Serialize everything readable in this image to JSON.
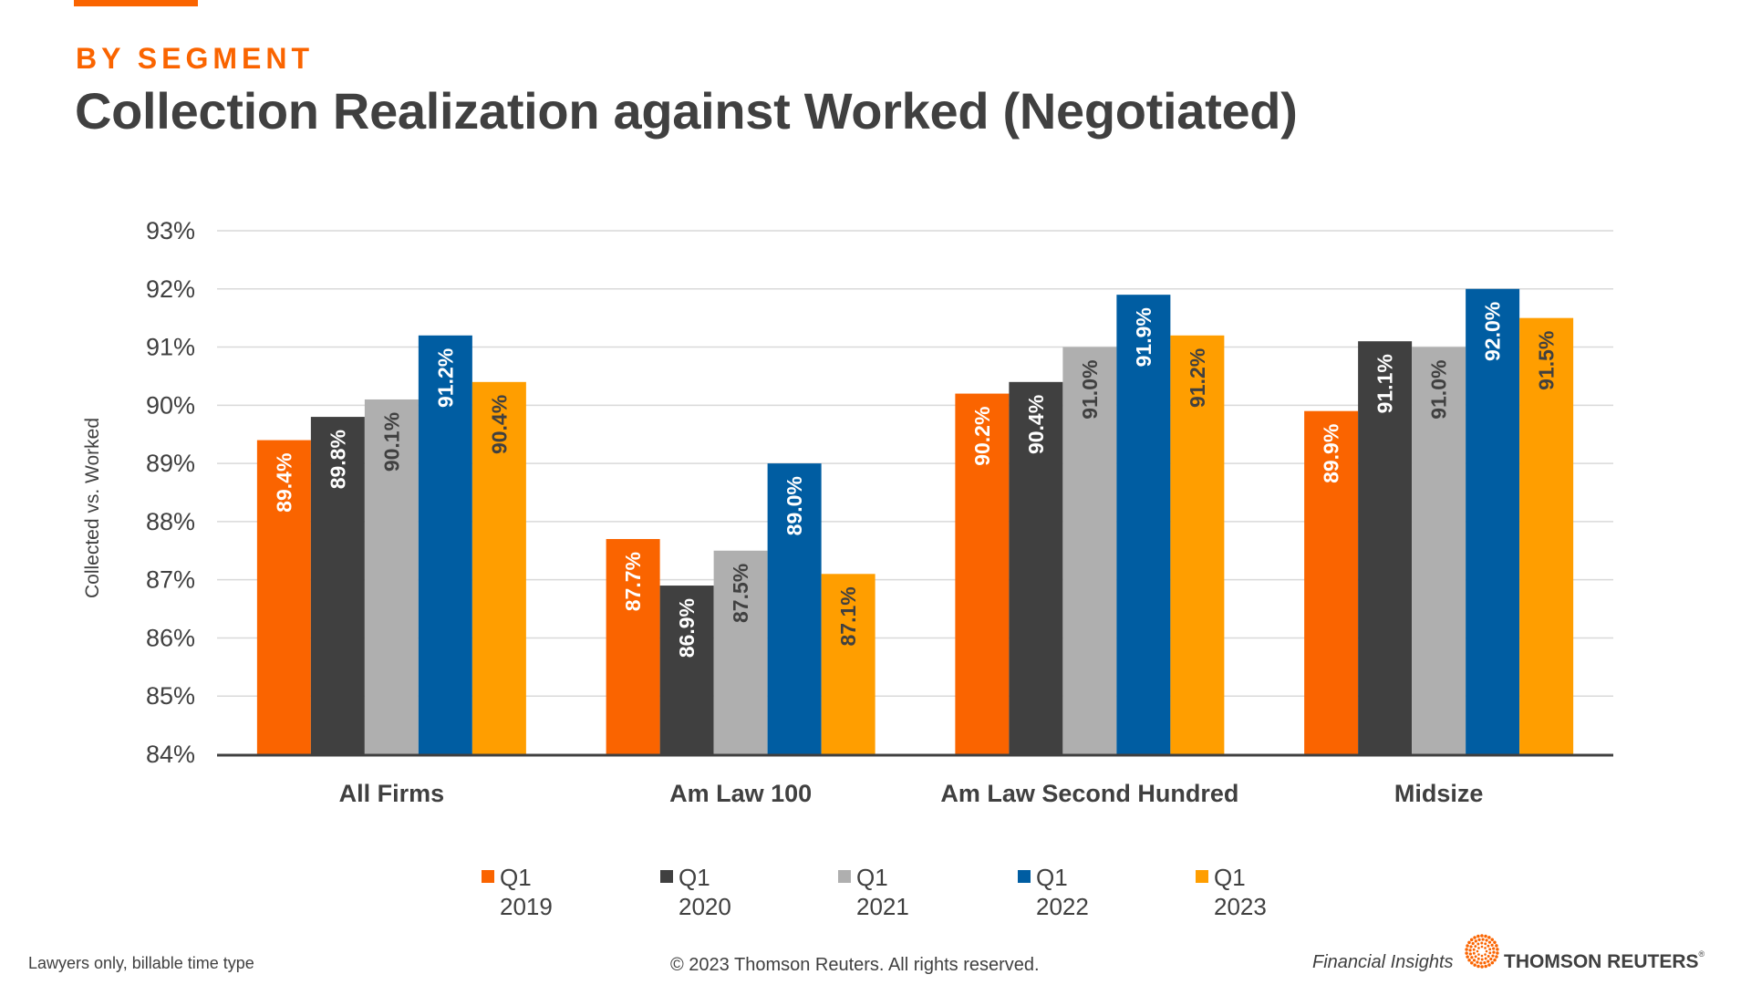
{
  "header": {
    "eyebrow": "BY SEGMENT",
    "title": "Collection Realization against Worked (Negotiated)"
  },
  "colors": {
    "accent": "#fa6400",
    "text": "#404040",
    "grid": "#d9d9d9",
    "axis": "#404040"
  },
  "chart_data": {
    "type": "bar",
    "title": "Collection Realization against Worked (Negotiated)",
    "xlabel": "",
    "ylabel": "Collected vs. Worked",
    "ylim": [
      84,
      93
    ],
    "yticks": [
      84,
      85,
      86,
      87,
      88,
      89,
      90,
      91,
      92,
      93
    ],
    "ytick_labels": [
      "84%",
      "85%",
      "86%",
      "87%",
      "88%",
      "89%",
      "90%",
      "91%",
      "92%",
      "93%"
    ],
    "grid": true,
    "legend_position": "bottom",
    "categories": [
      "All Firms",
      "Am Law 100",
      "Am Law Second Hundred",
      "Midsize"
    ],
    "series": [
      {
        "name": "Q1 2019",
        "legend_lines": [
          "Q1",
          "2019"
        ],
        "color": "#fa6400",
        "label_color": "#ffffff",
        "values": [
          89.4,
          87.7,
          90.2,
          89.9
        ],
        "labels": [
          "89.4%",
          "87.7%",
          "90.2%",
          "89.9%"
        ]
      },
      {
        "name": "Q1 2020",
        "legend_lines": [
          "Q1",
          "2020"
        ],
        "color": "#404040",
        "label_color": "#ffffff",
        "values": [
          89.8,
          86.9,
          90.4,
          91.1
        ],
        "labels": [
          "89.8%",
          "86.9%",
          "90.4%",
          "91.1%"
        ]
      },
      {
        "name": "Q1 2021",
        "legend_lines": [
          "Q1",
          "2021"
        ],
        "color": "#afafaf",
        "label_color": "#404040",
        "values": [
          90.1,
          87.5,
          91.0,
          91.0
        ],
        "labels": [
          "90.1%",
          "87.5%",
          "91.0%",
          "91.0%"
        ]
      },
      {
        "name": "Q1 2022",
        "legend_lines": [
          "Q1",
          "2022"
        ],
        "color": "#005da2",
        "label_color": "#ffffff",
        "values": [
          91.2,
          89.0,
          91.9,
          92.0
        ],
        "labels": [
          "91.2%",
          "89.0%",
          "91.9%",
          "92.0%"
        ]
      },
      {
        "name": "Q1 2023",
        "legend_lines": [
          "Q1",
          "2023"
        ],
        "color": "#ff9e00",
        "label_color": "#404040",
        "values": [
          90.4,
          87.1,
          91.2,
          91.5
        ],
        "labels": [
          "90.4%",
          "87.1%",
          "91.2%",
          "91.5%"
        ]
      }
    ]
  },
  "legend": [
    {
      "text": "Q1\n2019"
    },
    {
      "text": "Q1\n2020"
    },
    {
      "text": "Q1\n2021"
    },
    {
      "text": "Q1\n2022"
    },
    {
      "text": "Q1\n2023"
    }
  ],
  "footer": {
    "note": "Lawyers only, billable time type",
    "copyright": "© 2023 Thomson Reuters. All rights reserved.",
    "product": "Financial Insights",
    "brand": "THOMSON REUTERS",
    "brand_mark": "®"
  }
}
